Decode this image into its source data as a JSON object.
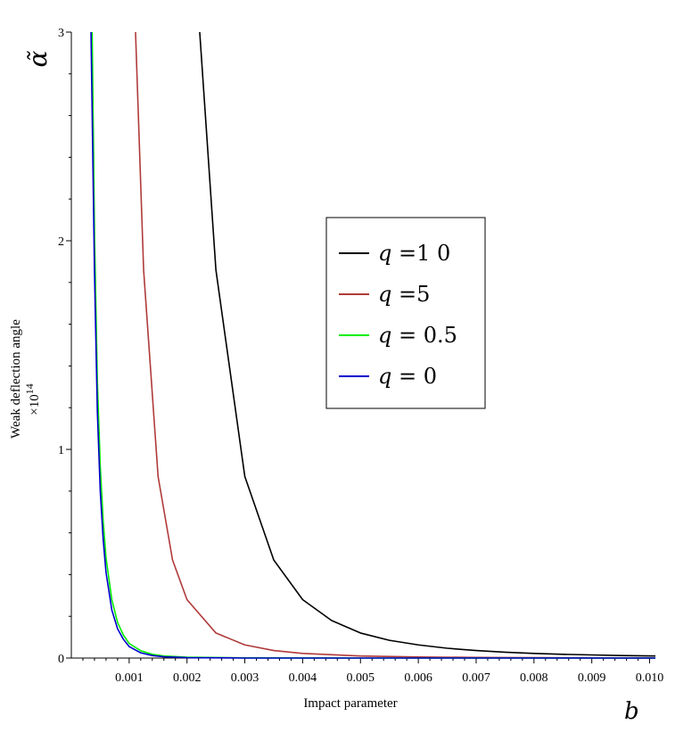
{
  "chart_data": {
    "type": "line",
    "xlabel": "Impact parameter",
    "ylabel": "Weak deflection angle",
    "ylabel_multiplier": "×10",
    "ylabel_multiplier_exp": "14",
    "x_axis_symbol": "b",
    "y_axis_symbol": "α̃",
    "xlim": [
      0,
      0.0101
    ],
    "ylim": [
      0,
      3
    ],
    "x_ticks": [
      0.001,
      0.002,
      0.003,
      0.004,
      0.005,
      0.006,
      0.007,
      0.008,
      0.009,
      0.01
    ],
    "x_tick_labels": [
      "0.001",
      "0.002",
      "0.003",
      "0.004",
      "0.005",
      "0.006",
      "0.007",
      "0.008",
      "0.009",
      "0.010"
    ],
    "y_ticks": [
      0,
      1,
      2,
      3
    ],
    "y_tick_labels": [
      "0",
      "1",
      "2",
      "3"
    ],
    "grid": false,
    "legend_position": "center-right",
    "series": [
      {
        "name": "q =1 0",
        "color": "#000000",
        "x": [
          0.00222,
          0.0025,
          0.003,
          0.0035,
          0.004,
          0.0045,
          0.005,
          0.0055,
          0.006,
          0.0065,
          0.007,
          0.0075,
          0.008,
          0.0085,
          0.009,
          0.0095,
          0.0101
        ],
        "y": [
          3.0,
          1.86,
          0.87,
          0.47,
          0.28,
          0.18,
          0.12,
          0.085,
          0.063,
          0.047,
          0.036,
          0.028,
          0.022,
          0.018,
          0.015,
          0.012,
          0.01
        ]
      },
      {
        "name": "q =5",
        "color": "#b03a3a",
        "x": [
          0.00111,
          0.00125,
          0.0015,
          0.00175,
          0.002,
          0.0025,
          0.003,
          0.0035,
          0.004,
          0.005,
          0.006,
          0.007,
          0.008,
          0.009,
          0.0101
        ],
        "y": [
          3.0,
          1.86,
          0.87,
          0.47,
          0.28,
          0.12,
          0.063,
          0.036,
          0.022,
          0.01,
          0.005,
          0.003,
          0.002,
          0.001,
          0.0
        ]
      },
      {
        "name": "q = 0.5",
        "color": "#00ee00",
        "x": [
          0.00036,
          0.0004,
          0.00045,
          0.0005,
          0.00055,
          0.0006,
          0.0007,
          0.0008,
          0.0009,
          0.001,
          0.0012,
          0.0014,
          0.0016,
          0.002,
          0.003,
          0.005,
          0.0101
        ],
        "y": [
          3.0,
          2.05,
          1.33,
          0.92,
          0.66,
          0.48,
          0.28,
          0.17,
          0.11,
          0.07,
          0.035,
          0.018,
          0.01,
          0.004,
          0.001,
          0.0,
          0.0
        ]
      },
      {
        "name": "q = 0",
        "color": "#0000cc",
        "x": [
          0.00034,
          0.0004,
          0.00045,
          0.0005,
          0.00055,
          0.0006,
          0.0007,
          0.0008,
          0.0009,
          0.001,
          0.0012,
          0.0014,
          0.0016,
          0.002,
          0.003,
          0.005,
          0.0101
        ],
        "y": [
          3.0,
          1.85,
          1.18,
          0.8,
          0.57,
          0.41,
          0.23,
          0.14,
          0.09,
          0.055,
          0.025,
          0.012,
          0.006,
          0.002,
          0.0,
          0.0,
          0.0
        ]
      }
    ]
  }
}
